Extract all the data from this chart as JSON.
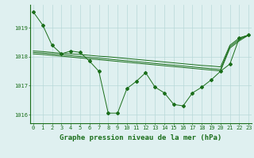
{
  "title": "Graphe pression niveau de la mer (hPa)",
  "xlabel_hours": [
    0,
    1,
    2,
    3,
    4,
    5,
    6,
    7,
    8,
    9,
    10,
    11,
    12,
    13,
    14,
    15,
    16,
    17,
    18,
    19,
    20,
    21,
    22,
    23
  ],
  "line1": [
    1019.55,
    1019.1,
    1018.4,
    1018.1,
    1018.2,
    1018.15,
    1017.85,
    1017.5,
    1016.05,
    1016.05,
    1016.9,
    1017.15,
    1017.45,
    1016.95,
    1016.75,
    1016.35,
    1016.3,
    1016.75,
    1016.95,
    1017.2,
    1017.5,
    1017.75,
    1018.65,
    1018.75
  ],
  "line2": [
    1018.2,
    1018.18,
    1018.15,
    1018.12,
    1018.1,
    1018.08,
    1018.05,
    1018.02,
    1018.0,
    1017.97,
    1017.94,
    1017.91,
    1017.88,
    1017.85,
    1017.82,
    1017.79,
    1017.76,
    1017.73,
    1017.7,
    1017.68,
    1017.65,
    1018.4,
    1018.65,
    1018.75
  ],
  "line3": [
    1018.15,
    1018.13,
    1018.1,
    1018.07,
    1018.04,
    1018.01,
    1017.98,
    1017.95,
    1017.92,
    1017.89,
    1017.86,
    1017.83,
    1017.8,
    1017.77,
    1017.74,
    1017.71,
    1017.68,
    1017.65,
    1017.62,
    1017.59,
    1017.56,
    1018.35,
    1018.6,
    1018.75
  ],
  "line4": [
    1018.1,
    1018.08,
    1018.05,
    1018.02,
    1017.99,
    1017.96,
    1017.93,
    1017.9,
    1017.87,
    1017.84,
    1017.81,
    1017.78,
    1017.75,
    1017.72,
    1017.69,
    1017.66,
    1017.63,
    1017.6,
    1017.57,
    1017.54,
    1017.51,
    1018.3,
    1018.55,
    1018.75
  ],
  "bg_color": "#dff0f0",
  "grid_color": "#b8d8d8",
  "line_color": "#1a6e1a",
  "marker": "D",
  "marker_size": 2.0,
  "ylim": [
    1015.7,
    1019.8
  ],
  "yticks": [
    1016,
    1017,
    1018,
    1019
  ],
  "title_fontsize": 6.5,
  "tick_fontsize": 5.0
}
